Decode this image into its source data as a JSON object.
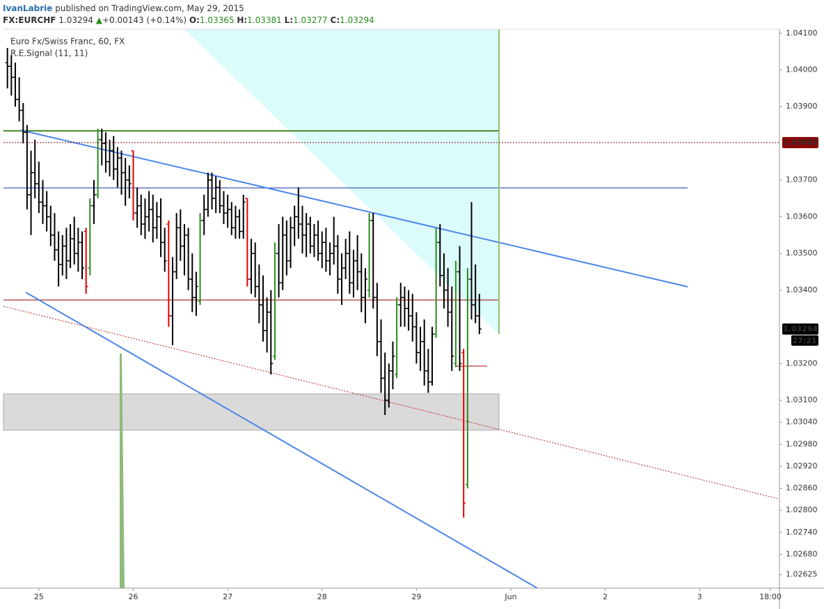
{
  "header": {
    "author": "IvanLabrie",
    "published": "published on TradingView.com, May 29, 2015",
    "symbol": "FX:EURCHF",
    "last": "1.03294",
    "change": "+0.00143 (+0.14%)",
    "ohlc": [
      {
        "label": "O:",
        "value": "1.03365"
      },
      {
        "label": "H:",
        "value": "1.03381"
      },
      {
        "label": "L:",
        "value": "1.03277"
      },
      {
        "label": "C:",
        "value": "1.03294"
      }
    ]
  },
  "chart_data": {
    "type": "ohlc",
    "title": "Euro Fx/Swiss Franc, 60, FX",
    "subtitle": "R.E.Signal (11, 11)",
    "x": [
      1,
      2,
      3,
      4,
      5,
      6,
      7,
      8,
      9,
      10,
      11,
      12,
      13,
      14,
      15,
      16,
      17,
      18,
      19,
      20,
      21,
      22,
      23,
      24,
      25,
      26,
      27,
      28,
      29,
      30,
      31,
      32,
      33,
      34,
      35,
      36,
      37,
      38,
      39,
      40,
      41,
      42,
      43,
      44,
      45,
      46,
      47,
      48,
      49,
      50,
      51,
      52,
      53,
      54,
      55,
      56,
      57,
      58,
      59,
      60,
      61,
      62,
      63,
      64,
      65,
      66,
      67,
      68,
      69,
      70,
      71,
      72,
      73,
      74,
      75,
      76,
      77,
      78,
      79,
      80,
      81,
      82,
      83,
      84,
      85,
      86,
      87,
      88,
      89,
      90,
      91,
      92,
      93,
      94,
      95,
      96,
      97,
      98,
      99,
      100,
      101,
      102,
      103,
      104,
      105,
      106,
      107,
      108,
      109,
      110,
      111,
      112,
      113,
      114,
      115,
      116,
      117,
      118,
      119,
      120,
      121
    ],
    "open": [
      1.0402,
      1.0401,
      1.0398,
      1.0392,
      1.0389,
      1.0383,
      1.0366,
      1.0372,
      1.0369,
      1.0364,
      1.0363,
      1.036,
      1.0355,
      1.0351,
      1.0347,
      1.0352,
      1.0348,
      1.0354,
      1.035,
      1.0353,
      1.0356,
      1.0346,
      1.0363,
      1.0366,
      1.0381,
      1.038,
      1.0375,
      1.0378,
      1.0373,
      1.0376,
      1.0372,
      1.037,
      1.0378,
      1.0361,
      1.0363,
      1.0358,
      1.036,
      1.0362,
      1.0357,
      1.036,
      1.0353,
      1.0358,
      1.0333,
      1.0345,
      1.0357,
      1.0352,
      1.0355,
      1.0343,
      1.0338,
      1.0337,
      1.0359,
      1.0362,
      1.037,
      1.0365,
      1.0368,
      1.0363,
      1.0361,
      1.0362,
      1.0357,
      1.036,
      1.0356,
      1.0365,
      1.0343,
      1.035,
      1.0341,
      1.0336,
      1.0329,
      1.0334,
      1.0322,
      1.035,
      1.0342,
      1.0355,
      1.0348,
      1.0357,
      1.036,
      1.0358,
      1.0355,
      1.0358,
      1.0352,
      1.0355,
      1.035,
      1.0353,
      1.0348,
      1.035,
      1.0352,
      1.0343,
      1.0346,
      1.035,
      1.0342,
      1.0348,
      1.0345,
      1.0338,
      1.034,
      1.0359,
      1.0338,
      1.0326,
      1.0316,
      1.031,
      1.0318,
      1.0317,
      1.0336,
      1.0338,
      1.0335,
      1.0333,
      1.033,
      1.0323,
      1.0326,
      1.0318,
      1.0315,
      1.0328,
      1.0353,
      1.0344,
      1.034,
      1.0334,
      1.032,
      1.0345,
      1.0323,
      1.0287,
      1.0343,
      1.0336,
      1.0333
    ],
    "high": [
      1.0406,
      1.0404,
      1.0402,
      1.0398,
      1.0391,
      1.0385,
      1.0378,
      1.0381,
      1.0375,
      1.037,
      1.0367,
      1.0363,
      1.0361,
      1.0356,
      1.0355,
      1.0357,
      1.0358,
      1.036,
      1.0357,
      1.0356,
      1.0357,
      1.0365,
      1.037,
      1.0384,
      1.0384,
      1.0383,
      1.0381,
      1.0382,
      1.0379,
      1.0378,
      1.0376,
      1.0374,
      1.0378,
      1.0368,
      1.0366,
      1.0365,
      1.0367,
      1.0366,
      1.0364,
      1.0365,
      1.0357,
      1.0359,
      1.0349,
      1.0361,
      1.0362,
      1.0358,
      1.0357,
      1.035,
      1.0345,
      1.0361,
      1.0366,
      1.0372,
      1.0372,
      1.0371,
      1.037,
      1.0367,
      1.0366,
      1.0364,
      1.0363,
      1.0362,
      1.0366,
      1.0365,
      1.0354,
      1.0353,
      1.0347,
      1.0344,
      1.0338,
      1.034,
      1.0353,
      1.0358,
      1.036,
      1.0359,
      1.036,
      1.0363,
      1.0368,
      1.0363,
      1.0361,
      1.036,
      1.0358,
      1.0359,
      1.0356,
      1.0357,
      1.0353,
      1.036,
      1.0355,
      1.035,
      1.0354,
      1.0356,
      1.0351,
      1.0355,
      1.035,
      1.0346,
      1.0361,
      1.0361,
      1.0342,
      1.0332,
      1.0323,
      1.032,
      1.0326,
      1.0338,
      1.0342,
      1.0341,
      1.034,
      1.0339,
      1.0334,
      1.033,
      1.0332,
      1.0324,
      1.033,
      1.0357,
      1.0358,
      1.035,
      1.0346,
      1.0341,
      1.0348,
      1.0352,
      1.0324,
      1.0346,
      1.0364,
      1.0347,
      1.0339
    ],
    "low": [
      1.0395,
      1.0393,
      1.039,
      1.0386,
      1.038,
      1.0362,
      1.0355,
      1.0365,
      1.0361,
      1.0358,
      1.0356,
      1.0352,
      1.0348,
      1.0341,
      1.0344,
      1.0343,
      1.0346,
      1.0347,
      1.0345,
      1.0343,
      1.0339,
      1.0344,
      1.0358,
      1.0365,
      1.0374,
      1.0372,
      1.0371,
      1.037,
      1.0368,
      1.0366,
      1.0363,
      1.0365,
      1.0359,
      1.0357,
      1.0355,
      1.0354,
      1.0356,
      1.0353,
      1.0354,
      1.0349,
      1.0345,
      1.033,
      1.0325,
      1.0343,
      1.0348,
      1.0344,
      1.034,
      1.0334,
      1.0333,
      1.0336,
      1.0355,
      1.036,
      1.0362,
      1.0361,
      1.0361,
      1.0358,
      1.0357,
      1.0355,
      1.0354,
      1.0354,
      1.0354,
      1.0341,
      1.0339,
      1.0338,
      1.0331,
      1.0326,
      1.0323,
      1.0317,
      1.0321,
      1.0338,
      1.034,
      1.0344,
      1.0346,
      1.0352,
      1.0354,
      1.035,
      1.0349,
      1.035,
      1.0349,
      1.0348,
      1.0346,
      1.0345,
      1.0344,
      1.0347,
      1.0339,
      1.0336,
      1.0343,
      1.0339,
      1.0338,
      1.034,
      1.0334,
      1.0331,
      1.0338,
      1.0335,
      1.0322,
      1.0312,
      1.0306,
      1.0308,
      1.0313,
      1.0316,
      1.033,
      1.033,
      1.0329,
      1.0326,
      1.032,
      1.0318,
      1.0314,
      1.0312,
      1.0314,
      1.0327,
      1.0341,
      1.0335,
      1.033,
      1.0318,
      1.0319,
      1.0318,
      1.0278,
      1.0286,
      1.0332,
      1.0331,
      1.0328
    ],
    "close": [
      1.0401,
      1.0398,
      1.0392,
      1.0389,
      1.0383,
      1.0366,
      1.0372,
      1.0369,
      1.0364,
      1.0363,
      1.036,
      1.0355,
      1.0351,
      1.0347,
      1.0352,
      1.0348,
      1.0354,
      1.035,
      1.0353,
      1.0346,
      1.0341,
      1.0363,
      1.0366,
      1.0381,
      1.038,
      1.0375,
      1.0378,
      1.0373,
      1.0376,
      1.0372,
      1.037,
      1.0369,
      1.0361,
      1.0363,
      1.0358,
      1.036,
      1.0362,
      1.0357,
      1.036,
      1.0353,
      1.0348,
      1.0333,
      1.0345,
      1.0357,
      1.0352,
      1.0355,
      1.0343,
      1.0338,
      1.0341,
      1.0359,
      1.0362,
      1.037,
      1.0365,
      1.0368,
      1.0363,
      1.0361,
      1.0362,
      1.0357,
      1.036,
      1.0356,
      1.0364,
      1.0343,
      1.035,
      1.0341,
      1.0336,
      1.0329,
      1.0334,
      1.032,
      1.035,
      1.0342,
      1.0355,
      1.0348,
      1.0357,
      1.036,
      1.0358,
      1.0355,
      1.0358,
      1.0352,
      1.0355,
      1.035,
      1.0353,
      1.0348,
      1.035,
      1.0352,
      1.0343,
      1.0346,
      1.035,
      1.0342,
      1.0348,
      1.0345,
      1.0338,
      1.0343,
      1.0359,
      1.0338,
      1.0326,
      1.0316,
      1.031,
      1.0318,
      1.0322,
      1.0336,
      1.0338,
      1.0335,
      1.0333,
      1.033,
      1.0323,
      1.0326,
      1.0318,
      1.0315,
      1.0328,
      1.0353,
      1.0344,
      1.034,
      1.0334,
      1.0322,
      1.0345,
      1.032,
      1.0282,
      1.0343,
      1.0336,
      1.0333,
      1.03294
    ],
    "colors": [
      "#000",
      "#000",
      "#000",
      "#000",
      "#000",
      "#000",
      "#000",
      "#000",
      "#000",
      "#000",
      "#000",
      "#000",
      "#000",
      "#000",
      "#000",
      "#000",
      "#000",
      "#000",
      "#000",
      "#000",
      "#e00000",
      "#2b8a1e",
      "#000",
      "#2b8a1e",
      "#000",
      "#000",
      "#000",
      "#000",
      "#000",
      "#000",
      "#000",
      "#000",
      "#e00000",
      "#000",
      "#000",
      "#000",
      "#000",
      "#000",
      "#000",
      "#000",
      "#000",
      "#e00000",
      "#000",
      "#000",
      "#000",
      "#000",
      "#000",
      "#000",
      "#000",
      "#2b8a1e",
      "#000",
      "#000",
      "#000",
      "#000",
      "#000",
      "#000",
      "#000",
      "#000",
      "#000",
      "#000",
      "#000",
      "#e00000",
      "#000",
      "#000",
      "#000",
      "#000",
      "#000",
      "#000",
      "#2b8a1e",
      "#000",
      "#000",
      "#000",
      "#000",
      "#000",
      "#000",
      "#000",
      "#000",
      "#000",
      "#000",
      "#000",
      "#000",
      "#000",
      "#000",
      "#000",
      "#000",
      "#000",
      "#000",
      "#000",
      "#000",
      "#000",
      "#000",
      "#000",
      "#2b8a1e",
      "#000",
      "#000",
      "#000",
      "#000",
      "#000",
      "#000",
      "#2b8a1e",
      "#000",
      "#000",
      "#000",
      "#000",
      "#000",
      "#000",
      "#000",
      "#000",
      "#000",
      "#2b8a1e",
      "#000",
      "#000",
      "#000",
      "#000",
      "#2b8a1e",
      "#000",
      "#e00000",
      "#2b8a1e",
      "#000",
      "#000",
      "#000"
    ],
    "xlim": [
      0,
      197.3
    ],
    "xticks": [
      {
        "value": 9,
        "label": "25"
      },
      {
        "value": 33,
        "label": "26"
      },
      {
        "value": 57,
        "label": "27"
      },
      {
        "value": 81,
        "label": "28"
      },
      {
        "value": 105,
        "label": "29"
      },
      {
        "value": 129,
        "label": "Jun"
      },
      {
        "value": 153,
        "label": "2"
      },
      {
        "value": 177,
        "label": "3"
      },
      {
        "value": 195,
        "label": "18:00"
      }
    ],
    "ylim": [
      1.02588,
      1.04111
    ],
    "yticks": [
      {
        "value": 1.041,
        "label": "1.04100"
      },
      {
        "value": 1.04,
        "label": "1.04000"
      },
      {
        "value": 1.039,
        "label": "1.03900"
      },
      {
        "value": 1.037,
        "label": "1.03700"
      },
      {
        "value": 1.036,
        "label": "1.03600"
      },
      {
        "value": 1.035,
        "label": "1.03500"
      },
      {
        "value": 1.034,
        "label": "1.03400"
      },
      {
        "value": 1.032,
        "label": "1.03200"
      },
      {
        "value": 1.031,
        "label": "1.03100"
      },
      {
        "value": 1.0304,
        "label": "1.03040"
      },
      {
        "value": 1.0298,
        "label": "1.02980"
      },
      {
        "value": 1.0292,
        "label": "1.02920"
      },
      {
        "value": 1.0286,
        "label": "1.02860"
      },
      {
        "value": 1.028,
        "label": "1.02800"
      },
      {
        "value": 1.0274,
        "label": "1.02740"
      },
      {
        "value": 1.0268,
        "label": "1.02680"
      },
      {
        "value": 1.02625,
        "label": "1.02625"
      }
    ],
    "price_labels": [
      {
        "value": 1.03802,
        "color": "#8b0000"
      },
      {
        "value": 1.03294,
        "color": "#000000"
      }
    ],
    "countdown": "27:21",
    "grid": false
  }
}
